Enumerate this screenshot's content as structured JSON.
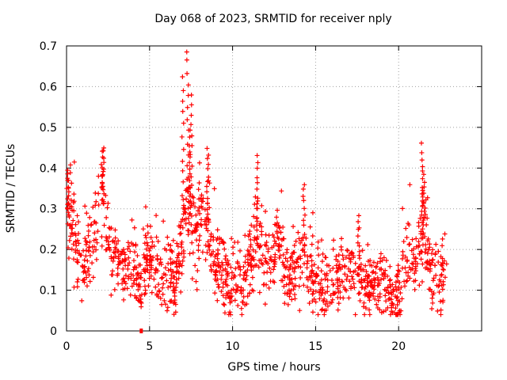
{
  "chart_data": {
    "type": "scatter",
    "title": "Day 068 of 2023, SRMTID for receiver nply",
    "xlabel": "GPS time / hours",
    "ylabel": "SRMTID / TECUs",
    "xlim": [
      0,
      25
    ],
    "ylim": [
      0,
      0.7
    ],
    "xticks": [
      0,
      5,
      10,
      15,
      20
    ],
    "yticks": [
      0,
      0.1,
      0.2,
      0.3,
      0.4,
      0.5,
      0.6,
      0.7
    ],
    "grid": true,
    "marker": "+",
    "color": "#ff0000",
    "x_range_of_data": [
      0,
      22.9
    ],
    "trend": [
      [
        0.0,
        0.27
      ],
      [
        0.3,
        0.3
      ],
      [
        0.6,
        0.2
      ],
      [
        0.9,
        0.15
      ],
      [
        1.2,
        0.17
      ],
      [
        1.5,
        0.2
      ],
      [
        1.8,
        0.25
      ],
      [
        2.1,
        0.35
      ],
      [
        2.4,
        0.25
      ],
      [
        2.7,
        0.19
      ],
      [
        3.0,
        0.17
      ],
      [
        3.3,
        0.17
      ],
      [
        3.6,
        0.16
      ],
      [
        3.9,
        0.15
      ],
      [
        4.2,
        0.14
      ],
      [
        4.5,
        0.12
      ],
      [
        4.8,
        0.18
      ],
      [
        5.1,
        0.18
      ],
      [
        5.4,
        0.15
      ],
      [
        5.7,
        0.12
      ],
      [
        6.0,
        0.12
      ],
      [
        6.3,
        0.14
      ],
      [
        6.6,
        0.13
      ],
      [
        6.9,
        0.2
      ],
      [
        7.2,
        0.35
      ],
      [
        7.5,
        0.26
      ],
      [
        7.8,
        0.24
      ],
      [
        8.1,
        0.28
      ],
      [
        8.4,
        0.3
      ],
      [
        8.7,
        0.22
      ],
      [
        9.0,
        0.18
      ],
      [
        9.3,
        0.16
      ],
      [
        9.6,
        0.13
      ],
      [
        9.9,
        0.12
      ],
      [
        10.2,
        0.14
      ],
      [
        10.5,
        0.13
      ],
      [
        10.8,
        0.15
      ],
      [
        11.1,
        0.17
      ],
      [
        11.4,
        0.22
      ],
      [
        11.7,
        0.2
      ],
      [
        12.0,
        0.19
      ],
      [
        12.3,
        0.16
      ],
      [
        12.6,
        0.18
      ],
      [
        12.9,
        0.22
      ],
      [
        13.2,
        0.13
      ],
      [
        13.5,
        0.14
      ],
      [
        13.8,
        0.15
      ],
      [
        14.1,
        0.18
      ],
      [
        14.4,
        0.16
      ],
      [
        14.7,
        0.15
      ],
      [
        15.0,
        0.12
      ],
      [
        15.3,
        0.11
      ],
      [
        15.6,
        0.13
      ],
      [
        15.9,
        0.12
      ],
      [
        16.2,
        0.14
      ],
      [
        16.5,
        0.13
      ],
      [
        16.8,
        0.15
      ],
      [
        17.1,
        0.14
      ],
      [
        17.4,
        0.12
      ],
      [
        17.7,
        0.13
      ],
      [
        18.0,
        0.09
      ],
      [
        18.3,
        0.1
      ],
      [
        18.6,
        0.11
      ],
      [
        18.9,
        0.12
      ],
      [
        19.2,
        0.13
      ],
      [
        19.5,
        0.08
      ],
      [
        19.8,
        0.09
      ],
      [
        20.1,
        0.1
      ],
      [
        20.4,
        0.16
      ],
      [
        20.7,
        0.2
      ],
      [
        21.0,
        0.15
      ],
      [
        21.3,
        0.22
      ],
      [
        21.6,
        0.25
      ],
      [
        21.9,
        0.14
      ],
      [
        22.2,
        0.13
      ],
      [
        22.5,
        0.13
      ],
      [
        22.8,
        0.14
      ]
    ],
    "peaks": [
      {
        "x": 0.1,
        "y": 0.39
      },
      {
        "x": 2.2,
        "y": 0.45
      },
      {
        "x": 7.0,
        "y": 0.62
      },
      {
        "x": 7.3,
        "y": 0.69
      },
      {
        "x": 7.5,
        "y": 0.58
      },
      {
        "x": 7.4,
        "y": 0.49
      },
      {
        "x": 8.5,
        "y": 0.45
      },
      {
        "x": 11.5,
        "y": 0.43
      },
      {
        "x": 14.3,
        "y": 0.36
      },
      {
        "x": 17.6,
        "y": 0.28
      },
      {
        "x": 21.4,
        "y": 0.46
      },
      {
        "x": 21.5,
        "y": 0.38
      }
    ],
    "outliers": [
      {
        "x": 4.5,
        "y": 0.0
      }
    ]
  }
}
